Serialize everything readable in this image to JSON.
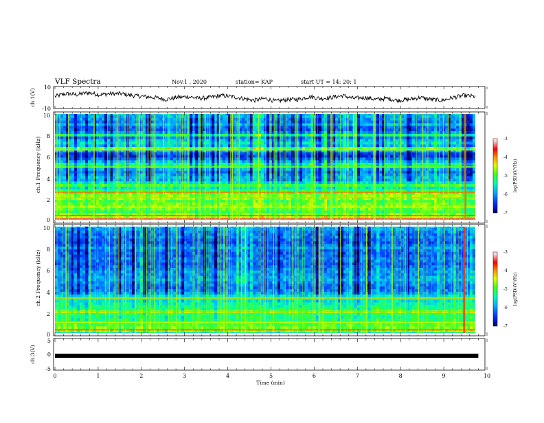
{
  "header": {
    "title": "VLF Spectra",
    "date": "Nov.1 , 2020",
    "station": "station= KAP",
    "start": "start UT = 14: 20: 1"
  },
  "chart_data": [
    {
      "type": "line",
      "panel": "ch1_waveform",
      "ylabel": "ch.1(V)",
      "ylim": [
        -10,
        10
      ],
      "ytick_labels": [
        "10",
        "-10"
      ],
      "trace_level_V": [
        1,
        4,
        3,
        5,
        3,
        4,
        4,
        2,
        1,
        0,
        -2,
        0,
        1,
        -1,
        0,
        2,
        1,
        -1,
        -3,
        -1,
        -4,
        -2,
        -2,
        1,
        -1,
        0,
        2,
        -1,
        0,
        -2,
        -1,
        -3,
        -2,
        0,
        -2,
        -3,
        0,
        2,
        1
      ]
    },
    {
      "type": "heatmap",
      "panel": "ch1_spectrogram",
      "ylabel": "ch.1 Frequency (kHz)",
      "xlim": [
        0,
        10
      ],
      "ylim": [
        0,
        10
      ],
      "ytick_labels": [
        "0",
        "2",
        "4",
        "6",
        "8",
        "10"
      ],
      "colorbar": {
        "label": "log(PSD)(V²/Hz)",
        "range": [
          -7,
          -3
        ],
        "tick_labels": [
          "-3",
          "-4",
          "-5",
          "-6",
          "-7"
        ],
        "colors": [
          "#00008b",
          "#0050ff",
          "#00c8ff",
          "#00ff80",
          "#b0ff00",
          "#ffff00",
          "#ff7f00",
          "#ff0000",
          "#ffffff"
        ]
      },
      "band_rows": [
        {
          "kHz": 10.0,
          "level": 0.3
        },
        {
          "kHz": 9.75,
          "level": 0.28
        },
        {
          "kHz": 9.5,
          "level": 0.25
        },
        {
          "kHz": 9.25,
          "level": 0.22
        },
        {
          "kHz": 9.0,
          "level": 0.3
        },
        {
          "kHz": 8.75,
          "level": 0.2
        },
        {
          "kHz": 8.5,
          "level": 0.18
        },
        {
          "kHz": 8.25,
          "level": 0.25
        },
        {
          "kHz": 8.0,
          "level": 0.45
        },
        {
          "kHz": 7.75,
          "level": 0.22
        },
        {
          "kHz": 7.5,
          "level": 0.3
        },
        {
          "kHz": 7.25,
          "level": 0.35
        },
        {
          "kHz": 7.0,
          "level": 0.3
        },
        {
          "kHz": 6.75,
          "level": 0.55
        },
        {
          "kHz": 6.5,
          "level": 0.3
        },
        {
          "kHz": 6.25,
          "level": 0.15
        },
        {
          "kHz": 6.0,
          "level": 0.12
        },
        {
          "kHz": 5.75,
          "level": 0.2
        },
        {
          "kHz": 5.5,
          "level": 0.3
        },
        {
          "kHz": 5.25,
          "level": 0.42
        },
        {
          "kHz": 5.0,
          "level": 0.4
        },
        {
          "kHz": 4.75,
          "level": 0.28
        },
        {
          "kHz": 4.5,
          "level": 0.22
        },
        {
          "kHz": 4.25,
          "level": 0.26
        },
        {
          "kHz": 4.0,
          "level": 0.3
        },
        {
          "kHz": 3.75,
          "level": 0.28
        },
        {
          "kHz": 3.5,
          "level": 0.36
        },
        {
          "kHz": 3.25,
          "level": 0.5
        },
        {
          "kHz": 3.0,
          "level": 0.38
        },
        {
          "kHz": 2.75,
          "level": 0.48
        },
        {
          "kHz": 2.5,
          "level": 0.55
        },
        {
          "kHz": 2.25,
          "level": 0.6
        },
        {
          "kHz": 2.0,
          "level": 0.58
        },
        {
          "kHz": 1.75,
          "level": 0.52
        },
        {
          "kHz": 1.5,
          "level": 0.56
        },
        {
          "kHz": 1.25,
          "level": 0.58
        },
        {
          "kHz": 1.0,
          "level": 0.55
        },
        {
          "kHz": 0.75,
          "level": 0.5
        },
        {
          "kHz": 0.5,
          "level": 0.6
        },
        {
          "kHz": 0.25,
          "level": 0.62
        },
        {
          "kHz": 0.0,
          "level": 0.4
        }
      ],
      "lines": [
        {
          "kHz": 6.6,
          "level": 0.62
        },
        {
          "kHz": 5.0,
          "level": 0.55
        },
        {
          "kHz": 2.6,
          "level": 0.78
        },
        {
          "kHz": 2.1,
          "level": 0.7
        },
        {
          "kHz": 1.2,
          "level": 0.65
        },
        {
          "kHz": 0.4,
          "level": 0.8
        },
        {
          "kHz": 0.1,
          "level": 0.9
        }
      ],
      "spikes_min": [
        0.3,
        0.9,
        1.45,
        1.95,
        2.5,
        3.0,
        3.35,
        3.8,
        4.1,
        4.7,
        5.2,
        5.6,
        6.0,
        6.4,
        6.9,
        7.4,
        8.0,
        8.5,
        9.1,
        9.48
      ]
    },
    {
      "type": "heatmap",
      "panel": "ch2_spectrogram",
      "ylabel": "ch.2 Frequency (kHz)",
      "xlim": [
        0,
        10
      ],
      "ylim": [
        0,
        10
      ],
      "ytick_labels": [
        "0",
        "2",
        "4",
        "6",
        "8",
        "10"
      ],
      "colorbar": {
        "label": "log(PSD)(V²/Hz)",
        "range": [
          -7,
          -3
        ],
        "tick_labels": [
          "-3",
          "-4",
          "-5",
          "-6",
          "-7"
        ]
      },
      "band_rows": [
        {
          "kHz": 10.0,
          "level": 0.3
        },
        {
          "kHz": 9.75,
          "level": 0.26
        },
        {
          "kHz": 9.5,
          "level": 0.22
        },
        {
          "kHz": 9.25,
          "level": 0.2
        },
        {
          "kHz": 9.0,
          "level": 0.22
        },
        {
          "kHz": 8.75,
          "level": 0.18
        },
        {
          "kHz": 8.5,
          "level": 0.16
        },
        {
          "kHz": 8.25,
          "level": 0.2
        },
        {
          "kHz": 8.0,
          "level": 0.25
        },
        {
          "kHz": 7.75,
          "level": 0.2
        },
        {
          "kHz": 7.5,
          "level": 0.18
        },
        {
          "kHz": 7.25,
          "level": 0.18
        },
        {
          "kHz": 7.0,
          "level": 0.22
        },
        {
          "kHz": 6.75,
          "level": 0.2
        },
        {
          "kHz": 6.5,
          "level": 0.18
        },
        {
          "kHz": 6.25,
          "level": 0.2
        },
        {
          "kHz": 6.0,
          "level": 0.22
        },
        {
          "kHz": 5.75,
          "level": 0.25
        },
        {
          "kHz": 5.5,
          "level": 0.24
        },
        {
          "kHz": 5.25,
          "level": 0.26
        },
        {
          "kHz": 5.0,
          "level": 0.28
        },
        {
          "kHz": 4.75,
          "level": 0.24
        },
        {
          "kHz": 4.5,
          "level": 0.22
        },
        {
          "kHz": 4.25,
          "level": 0.2
        },
        {
          "kHz": 4.0,
          "level": 0.22
        },
        {
          "kHz": 3.75,
          "level": 0.26
        },
        {
          "kHz": 3.5,
          "level": 0.34
        },
        {
          "kHz": 3.25,
          "level": 0.45
        },
        {
          "kHz": 3.0,
          "level": 0.36
        },
        {
          "kHz": 2.75,
          "level": 0.4
        },
        {
          "kHz": 2.5,
          "level": 0.42
        },
        {
          "kHz": 2.25,
          "level": 0.44
        },
        {
          "kHz": 2.0,
          "level": 0.58
        },
        {
          "kHz": 1.75,
          "level": 0.46
        },
        {
          "kHz": 1.5,
          "level": 0.44
        },
        {
          "kHz": 1.25,
          "level": 0.46
        },
        {
          "kHz": 1.0,
          "level": 0.5
        },
        {
          "kHz": 0.75,
          "level": 0.52
        },
        {
          "kHz": 0.5,
          "level": 0.56
        },
        {
          "kHz": 0.25,
          "level": 0.6
        },
        {
          "kHz": 0.0,
          "level": 0.4
        }
      ],
      "lines": [
        {
          "kHz": 3.3,
          "level": 0.7
        },
        {
          "kHz": 2.0,
          "level": 0.72
        },
        {
          "kHz": 1.0,
          "level": 0.62
        },
        {
          "kHz": 0.3,
          "level": 0.82
        }
      ],
      "spikes_min": [
        0.25,
        0.8,
        1.25,
        1.85,
        2.3,
        2.8,
        3.3,
        3.9,
        4.4,
        5.05,
        5.5,
        6.1,
        6.6,
        7.2,
        7.8,
        8.4,
        9.0,
        9.45
      ]
    },
    {
      "type": "line",
      "panel": "ch3_voltage",
      "ylabel": "ch.3(V)",
      "xlabel": "Time (min)",
      "xlim": [
        0,
        10
      ],
      "ylim": [
        -5,
        5
      ],
      "x_tick_labels": [
        "0",
        "1",
        "2",
        "3",
        "4",
        "5",
        "6",
        "7",
        "8",
        "9",
        "10"
      ],
      "ytick_labels": [
        "5",
        "0",
        "-5"
      ],
      "x": [
        0.0,
        9.8
      ],
      "y": [
        -0.5,
        -0.5
      ]
    }
  ]
}
